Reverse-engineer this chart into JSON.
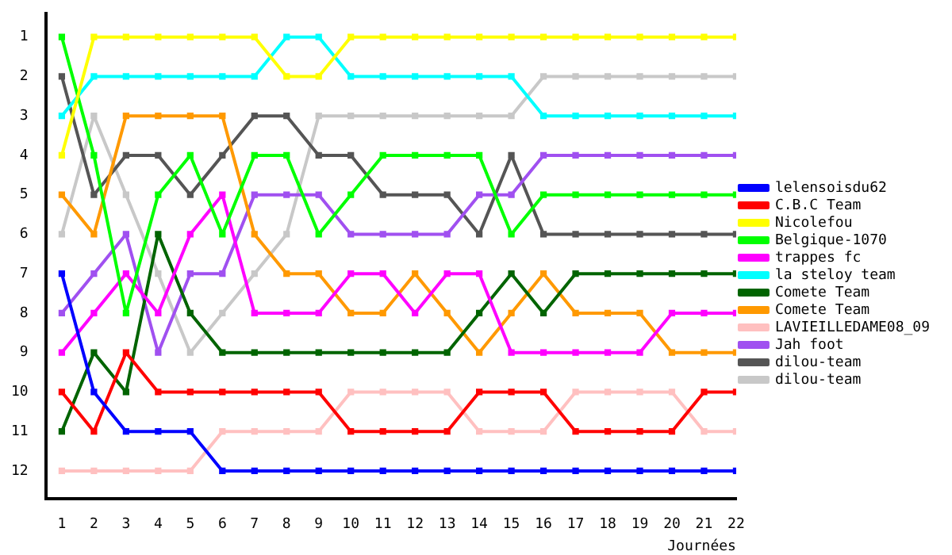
{
  "chart_data": {
    "type": "line",
    "xlabel": "Journées",
    "x": [
      1,
      2,
      3,
      4,
      5,
      6,
      7,
      8,
      9,
      10,
      11,
      12,
      13,
      14,
      15,
      16,
      17,
      18,
      19,
      20,
      21,
      22
    ],
    "xlim": [
      0.5,
      22
    ],
    "xticks": [
      1,
      2,
      3,
      4,
      5,
      6,
      7,
      8,
      9,
      10,
      11,
      12,
      13,
      14,
      15,
      16,
      17,
      18,
      19,
      20,
      21,
      22
    ],
    "ylim": [
      12.7,
      0.4
    ],
    "yticks": [
      1,
      2,
      3,
      4,
      5,
      6,
      7,
      8,
      9,
      10,
      11,
      12
    ],
    "grid": false,
    "legend": "right",
    "marker": "square",
    "line_style": "solid",
    "series": [
      {
        "name": "lelensoisdu62",
        "color": "#0000ff",
        "values": [
          7,
          10,
          11,
          11,
          11,
          12,
          12,
          12,
          12,
          12,
          12,
          12,
          12,
          12,
          12,
          12,
          12,
          12,
          12,
          12,
          12,
          12
        ]
      },
      {
        "name": "C.B.C Team",
        "color": "#ff0000",
        "values": [
          10,
          11,
          9,
          10,
          10,
          10,
          10,
          10,
          10,
          11,
          11,
          11,
          11,
          10,
          10,
          10,
          11,
          11,
          11,
          11,
          10,
          10
        ]
      },
      {
        "name": "Nicolefou",
        "color": "#ffff00",
        "values": [
          4,
          1,
          1,
          1,
          1,
          1,
          1,
          2,
          2,
          1,
          1,
          1,
          1,
          1,
          1,
          1,
          1,
          1,
          1,
          1,
          1,
          1
        ]
      },
      {
        "name": "Belgique-1070",
        "color": "#00ff00",
        "values": [
          1,
          4,
          8,
          5,
          4,
          6,
          4,
          4,
          6,
          5,
          4,
          4,
          4,
          4,
          6,
          5,
          5,
          5,
          5,
          5,
          5,
          5
        ]
      },
      {
        "name": "trappes fc",
        "color": "#ff00ff",
        "values": [
          9,
          8,
          7,
          8,
          6,
          5,
          8,
          8,
          8,
          7,
          7,
          8,
          7,
          7,
          9,
          9,
          9,
          9,
          9,
          8,
          8,
          8
        ]
      },
      {
        "name": "la steloy team",
        "color": "#00ffff",
        "values": [
          3,
          2,
          2,
          2,
          2,
          2,
          2,
          1,
          1,
          2,
          2,
          2,
          2,
          2,
          2,
          3,
          3,
          3,
          3,
          3,
          3,
          3
        ]
      },
      {
        "name": "Comete Team",
        "color": "#006400",
        "values": [
          11,
          9,
          10,
          6,
          8,
          9,
          9,
          9,
          9,
          9,
          9,
          9,
          9,
          8,
          7,
          8,
          7,
          7,
          7,
          7,
          7,
          7
        ]
      },
      {
        "name": "Comete Team",
        "color": "#ff9900",
        "values": [
          5,
          6,
          3,
          3,
          3,
          3,
          6,
          7,
          7,
          8,
          8,
          7,
          8,
          9,
          8,
          7,
          8,
          8,
          8,
          9,
          9,
          9
        ]
      },
      {
        "name": "LAVIEILLEDAME08_09",
        "color": "#ffc0c0",
        "values": [
          12,
          12,
          12,
          12,
          12,
          11,
          11,
          11,
          11,
          10,
          10,
          10,
          10,
          11,
          11,
          11,
          10,
          10,
          10,
          10,
          11,
          11
        ]
      },
      {
        "name": "Jah foot",
        "color": "#a050f0",
        "values": [
          8,
          7,
          6,
          9,
          7,
          7,
          5,
          5,
          5,
          6,
          6,
          6,
          6,
          5,
          5,
          4,
          4,
          4,
          4,
          4,
          4,
          4
        ]
      },
      {
        "name": "dilou-team",
        "color": "#555555",
        "values": [
          2,
          5,
          4,
          4,
          5,
          4,
          3,
          3,
          4,
          4,
          5,
          5,
          5,
          6,
          4,
          6,
          6,
          6,
          6,
          6,
          6,
          6
        ]
      },
      {
        "name": "dilou-team",
        "color": "#c8c8c8",
        "values": [
          6,
          3,
          5,
          7,
          9,
          8,
          7,
          6,
          3,
          3,
          3,
          3,
          3,
          3,
          3,
          2,
          2,
          2,
          2,
          2,
          2,
          2
        ]
      }
    ]
  }
}
